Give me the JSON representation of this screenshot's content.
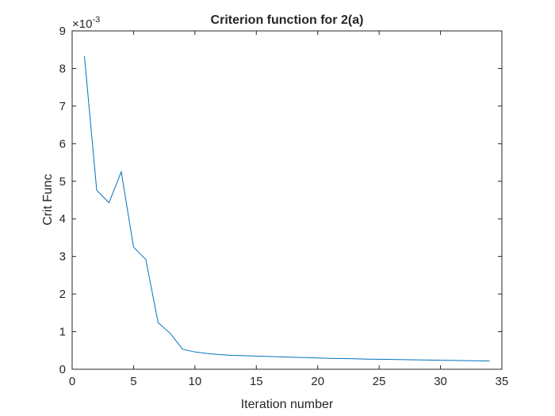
{
  "chart_data": {
    "type": "line",
    "title": "Criterion function for 2(a)",
    "xlabel": "Iteration number",
    "ylabel": "Crit Func",
    "xlim": [
      0,
      35
    ],
    "ylim": [
      0,
      9
    ],
    "y_multiplier": "×10",
    "y_multiplier_exponent": "-3",
    "x_ticks": [
      "0",
      "5",
      "10",
      "15",
      "20",
      "25",
      "30",
      "35"
    ],
    "y_ticks": [
      "0",
      "1",
      "2",
      "3",
      "4",
      "5",
      "6",
      "7",
      "8",
      "9"
    ],
    "grid": false,
    "line_color": "#0072BD",
    "series": [
      {
        "x": [
          1,
          2,
          3,
          4,
          5,
          6,
          7,
          8,
          9,
          10,
          11,
          12,
          13,
          14,
          15,
          16,
          17,
          18,
          19,
          20,
          21,
          22,
          23,
          24,
          25,
          26,
          27,
          28,
          29,
          30,
          31,
          32,
          33,
          34
        ],
        "y": [
          8.33,
          4.76,
          4.43,
          5.25,
          3.25,
          2.92,
          1.24,
          0.95,
          0.53,
          0.46,
          0.42,
          0.39,
          0.37,
          0.36,
          0.35,
          0.34,
          0.33,
          0.32,
          0.31,
          0.3,
          0.29,
          0.285,
          0.28,
          0.27,
          0.265,
          0.26,
          0.255,
          0.25,
          0.245,
          0.24,
          0.235,
          0.23,
          0.225,
          0.22
        ]
      }
    ]
  }
}
